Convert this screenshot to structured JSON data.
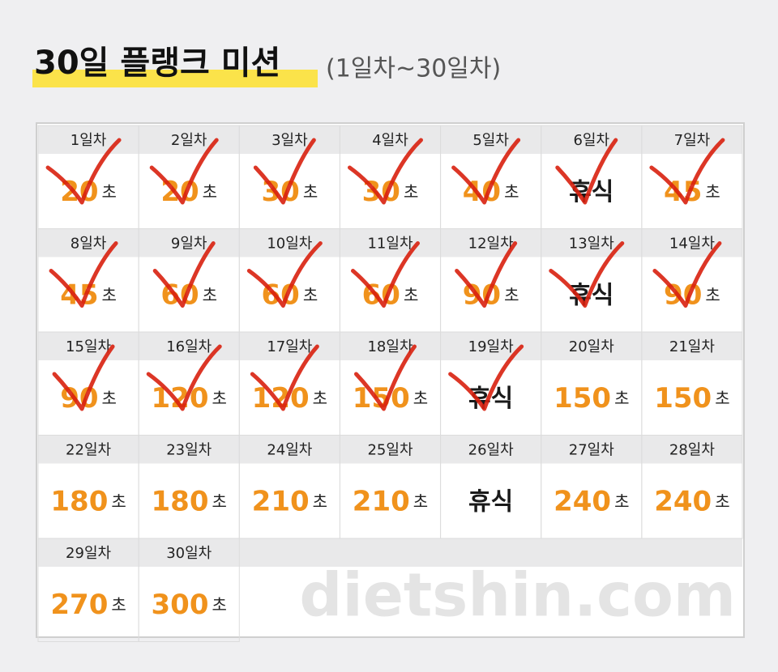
{
  "header": {
    "title": "30일 플랭크 미션",
    "subtitle": "(1일차~30일차)"
  },
  "days": [
    {
      "day": "1일차",
      "amount": "20",
      "unit": "초",
      "checked": true
    },
    {
      "day": "2일차",
      "amount": "20",
      "unit": "초",
      "checked": true
    },
    {
      "day": "3일차",
      "amount": "30",
      "unit": "초",
      "checked": true
    },
    {
      "day": "4일차",
      "amount": "30",
      "unit": "초",
      "checked": true
    },
    {
      "day": "5일차",
      "amount": "40",
      "unit": "초",
      "checked": true
    },
    {
      "day": "6일차",
      "amount": "휴식",
      "checked": true
    },
    {
      "day": "7일차",
      "amount": "45",
      "unit": "초",
      "checked": true
    },
    {
      "day": "8일차",
      "amount": "45",
      "unit": "초",
      "checked": true
    },
    {
      "day": "9일차",
      "amount": "60",
      "unit": "초",
      "checked": true
    },
    {
      "day": "10일차",
      "amount": "60",
      "unit": "초",
      "checked": true
    },
    {
      "day": "11일차",
      "amount": "60",
      "unit": "초",
      "checked": true
    },
    {
      "day": "12일차",
      "amount": "90",
      "unit": "초",
      "checked": true
    },
    {
      "day": "13일차",
      "amount": "휴식",
      "checked": true
    },
    {
      "day": "14일차",
      "amount": "90",
      "unit": "초",
      "checked": true
    },
    {
      "day": "15일차",
      "amount": "90",
      "unit": "초",
      "checked": true
    },
    {
      "day": "16일차",
      "amount": "120",
      "unit": "초",
      "checked": true
    },
    {
      "day": "17일차",
      "amount": "120",
      "unit": "초",
      "checked": true
    },
    {
      "day": "18일차",
      "amount": "150",
      "unit": "초",
      "checked": true
    },
    {
      "day": "19일차",
      "amount": "휴식",
      "checked": true
    },
    {
      "day": "20일차",
      "amount": "150",
      "unit": "초",
      "checked": false
    },
    {
      "day": "21일차",
      "amount": "150",
      "unit": "초",
      "checked": false
    },
    {
      "day": "22일차",
      "amount": "180",
      "unit": "초",
      "checked": false
    },
    {
      "day": "23일차",
      "amount": "180",
      "unit": "초",
      "checked": false
    },
    {
      "day": "24일차",
      "amount": "210",
      "unit": "초",
      "checked": false
    },
    {
      "day": "25일차",
      "amount": "210",
      "unit": "초",
      "checked": false
    },
    {
      "day": "26일차",
      "amount": "휴식",
      "checked": false
    },
    {
      "day": "27일차",
      "amount": "240",
      "unit": "초",
      "checked": false
    },
    {
      "day": "28일차",
      "amount": "240",
      "unit": "초",
      "checked": false
    },
    {
      "day": "29일차",
      "amount": "270",
      "unit": "초",
      "checked": false
    },
    {
      "day": "30일차",
      "amount": "300",
      "unit": "초",
      "checked": false
    }
  ],
  "watermark": "dietshin.com"
}
